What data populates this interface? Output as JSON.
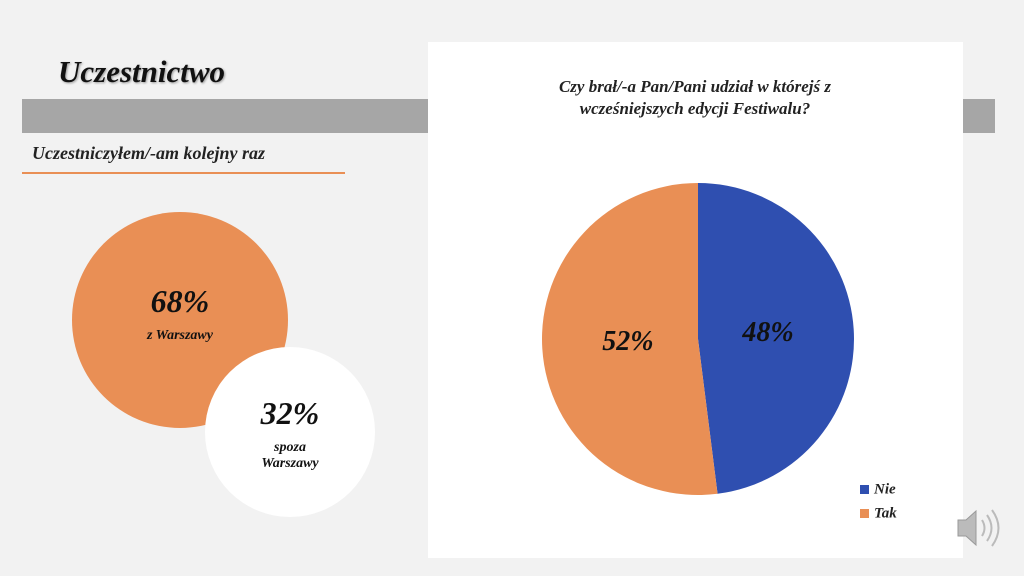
{
  "title": "Uczestnictwo",
  "subtitle": "Uczestniczyłem/-am kolejny raz",
  "circles": [
    {
      "value": 68,
      "label": "68%",
      "caption": "z Warszawy",
      "color": "#e98f55"
    },
    {
      "value": 32,
      "label": "32%",
      "caption": "spoza Warszawy",
      "color": "#ffffff"
    }
  ],
  "chart_data": {
    "type": "pie",
    "title": "Czy brał/-a Pan/Pani udział w którejś z wcześniejszych edycji Festiwalu?",
    "categories": [
      "Nie",
      "Tak"
    ],
    "values": [
      48,
      52
    ],
    "value_labels": [
      "48%",
      "52%"
    ],
    "colors": [
      "#2f4fb0",
      "#e98f55"
    ],
    "legend": "bottom-right"
  }
}
